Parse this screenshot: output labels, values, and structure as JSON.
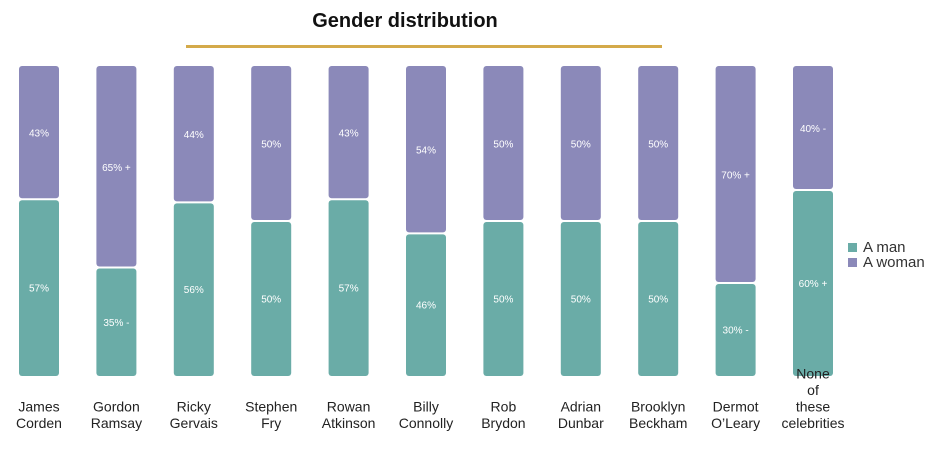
{
  "chart_data": {
    "type": "bar",
    "stacked": true,
    "percent_stacked": true,
    "title": "Gender distribution",
    "categories": [
      "James Corden",
      "Gordon Ramsay",
      "Ricky Gervais",
      "Stephen Fry",
      "Rowan Atkinson",
      "Billy Connolly",
      "Rob Brydon",
      "Adrian Dunbar",
      "Brooklyn Beckham",
      "Dermot O’Leary",
      "None of these celebrities"
    ],
    "category_lines": [
      [
        "James",
        "Corden"
      ],
      [
        "Gordon",
        "Ramsay"
      ],
      [
        "Ricky",
        "Gervais"
      ],
      [
        "Stephen",
        "Fry"
      ],
      [
        "Rowan",
        "Atkinson"
      ],
      [
        "Billy",
        "Connolly"
      ],
      [
        "Rob",
        "Brydon"
      ],
      [
        "Adrian",
        "Dunbar"
      ],
      [
        "Brooklyn",
        "Beckham"
      ],
      [
        "Dermot",
        "O’Leary"
      ],
      [
        "None",
        "of",
        "these",
        "celebrities"
      ]
    ],
    "series": [
      {
        "name": "A man",
        "color": "#6aaca7",
        "values": [
          57,
          35,
          56,
          50,
          57,
          46,
          50,
          50,
          50,
          30,
          60
        ],
        "labels": [
          "57%",
          "35% -",
          "56%",
          "50%",
          "57%",
          "46%",
          "50%",
          "50%",
          "50%",
          "30% -",
          "60% +"
        ]
      },
      {
        "name": "A woman",
        "color": "#8b89b9",
        "values": [
          43,
          65,
          44,
          50,
          43,
          54,
          50,
          50,
          50,
          70,
          40
        ],
        "labels": [
          "43%",
          "65% +",
          "44%",
          "50%",
          "43%",
          "54%",
          "50%",
          "50%",
          "50%",
          "70% +",
          "40% -"
        ]
      }
    ],
    "ylim": [
      0,
      100
    ],
    "grid": false,
    "legend_position": "right"
  }
}
